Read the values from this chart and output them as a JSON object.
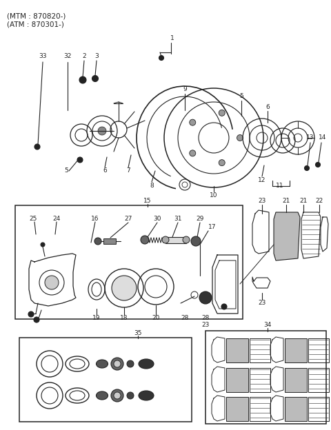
{
  "header_lines": [
    "(MTM : 870820-)",
    "(ATM : 870301-)"
  ],
  "bg_color": "#ffffff",
  "line_color": "#222222",
  "text_color": "#222222",
  "fig_width": 4.8,
  "fig_height": 6.24,
  "dpi": 100
}
